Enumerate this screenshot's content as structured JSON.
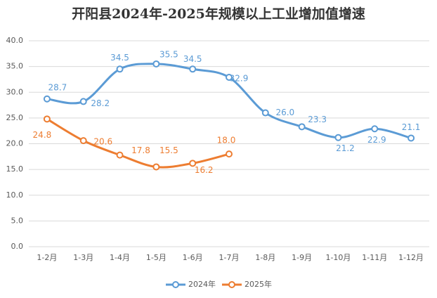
{
  "chart_data": {
    "type": "line",
    "title": "开阳县2024年-2025年规模以上工业增加值增速",
    "categories": [
      "1-2月",
      "1-3月",
      "1-4月",
      "1-5月",
      "1-6月",
      "1-7月",
      "1-8月",
      "1-9月",
      "1-10月",
      "1-11月",
      "1-12月"
    ],
    "series": [
      {
        "name": "2024年",
        "color": "#5b9bd5",
        "values": [
          28.7,
          28.2,
          34.5,
          35.5,
          34.5,
          32.9,
          26,
          23.3,
          21.2,
          22.9,
          21.1
        ],
        "value_labels": [
          "28.7",
          "28.2",
          "34.5",
          "35.5",
          "34.5",
          "32.9",
          "26.0",
          "23.3",
          "21.2",
          "22.9",
          "21.1"
        ]
      },
      {
        "name": "2025年",
        "color": "#ed7d31",
        "values": [
          24.8,
          20.6,
          17.8,
          15.5,
          16.2,
          18,
          null,
          null,
          null,
          null,
          null
        ],
        "value_labels": [
          "24.8",
          "20.6",
          "17.8",
          "15.5",
          "16.2",
          "18.0",
          null,
          null,
          null,
          null,
          null
        ]
      }
    ],
    "ylim": [
      0,
      40
    ],
    "yticks": [
      {
        "value": 0,
        "label": "0.0"
      },
      {
        "value": 5,
        "label": "5.0"
      },
      {
        "value": 10,
        "label": "10.0"
      },
      {
        "value": 15,
        "label": "15.0"
      },
      {
        "value": 20,
        "label": "20.0"
      },
      {
        "value": 25,
        "label": "25.0"
      },
      {
        "value": 30,
        "label": "30.0"
      },
      {
        "value": 35,
        "label": "35.0"
      },
      {
        "value": 40,
        "label": "40.0"
      }
    ],
    "grid": true,
    "smooth": true,
    "legend": "bottom"
  }
}
